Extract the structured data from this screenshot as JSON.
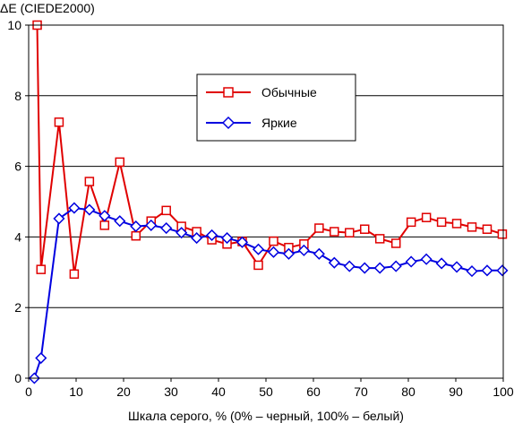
{
  "chart_data": {
    "type": "line",
    "ylabel": "ΔE (CIEDE2000)",
    "xlabel": "Шкала серого, % (0% – черный, 100% – белый)",
    "xlim": [
      0,
      100
    ],
    "ylim": [
      0,
      10
    ],
    "x_ticks": [
      0,
      10,
      20,
      30,
      40,
      50,
      60,
      70,
      80,
      90,
      100
    ],
    "y_ticks": [
      0,
      2,
      4,
      6,
      8,
      10
    ],
    "grid": "horizontal",
    "legend_position": "upper-center",
    "colors": {
      "Обычные": "#e00000",
      "Яркие": "#0000e0"
    },
    "series": [
      {
        "name": "Обычные",
        "marker": "square",
        "points": [
          [
            1.8,
            10.0
          ],
          [
            2.6,
            3.08
          ],
          [
            6.4,
            7.25
          ],
          [
            9.6,
            2.95
          ],
          [
            12.8,
            5.57
          ],
          [
            16.0,
            4.33
          ],
          [
            19.2,
            6.12
          ],
          [
            22.6,
            4.03
          ],
          [
            25.8,
            4.45
          ],
          [
            29.0,
            4.75
          ],
          [
            32.2,
            4.3
          ],
          [
            35.4,
            4.15
          ],
          [
            38.6,
            3.92
          ],
          [
            41.8,
            3.8
          ],
          [
            45.0,
            3.87
          ],
          [
            48.4,
            3.2
          ],
          [
            51.6,
            3.88
          ],
          [
            54.8,
            3.7
          ],
          [
            58.0,
            3.8
          ],
          [
            61.2,
            4.25
          ],
          [
            64.4,
            4.15
          ],
          [
            67.6,
            4.12
          ],
          [
            70.8,
            4.22
          ],
          [
            74.0,
            3.95
          ],
          [
            77.4,
            3.82
          ],
          [
            80.6,
            4.42
          ],
          [
            83.8,
            4.55
          ],
          [
            87.0,
            4.42
          ],
          [
            90.2,
            4.38
          ],
          [
            93.4,
            4.28
          ],
          [
            96.6,
            4.22
          ],
          [
            99.8,
            4.08
          ]
        ]
      },
      {
        "name": "Яркие",
        "marker": "diamond",
        "points": [
          [
            1.2,
            0.0
          ],
          [
            2.6,
            0.57
          ],
          [
            6.4,
            4.52
          ],
          [
            9.6,
            4.82
          ],
          [
            12.8,
            4.77
          ],
          [
            16.0,
            4.6
          ],
          [
            19.2,
            4.45
          ],
          [
            22.6,
            4.3
          ],
          [
            25.8,
            4.33
          ],
          [
            29.0,
            4.25
          ],
          [
            32.2,
            4.12
          ],
          [
            35.4,
            3.97
          ],
          [
            38.6,
            4.05
          ],
          [
            41.8,
            3.97
          ],
          [
            45.0,
            3.85
          ],
          [
            48.4,
            3.65
          ],
          [
            51.6,
            3.57
          ],
          [
            54.8,
            3.52
          ],
          [
            58.0,
            3.62
          ],
          [
            61.2,
            3.52
          ],
          [
            64.4,
            3.27
          ],
          [
            67.6,
            3.17
          ],
          [
            70.8,
            3.12
          ],
          [
            74.0,
            3.12
          ],
          [
            77.4,
            3.17
          ],
          [
            80.6,
            3.3
          ],
          [
            83.8,
            3.37
          ],
          [
            87.0,
            3.25
          ],
          [
            90.2,
            3.15
          ],
          [
            93.4,
            3.03
          ],
          [
            96.6,
            3.05
          ],
          [
            99.8,
            3.05
          ]
        ]
      }
    ]
  }
}
